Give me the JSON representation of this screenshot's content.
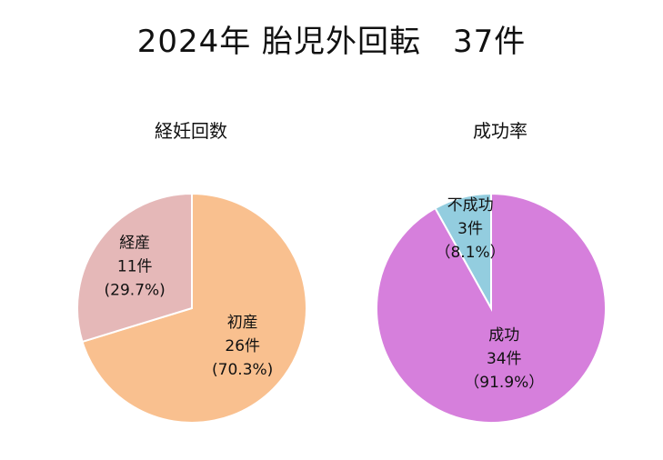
{
  "title": "2024年 胎児外回転　37件",
  "chart_data": [
    {
      "type": "pie",
      "title": "経妊回数",
      "slices": [
        {
          "label": "初産",
          "count": "26件",
          "percent": "(70.3%)",
          "value": 26,
          "color": "#f9c08f"
        },
        {
          "label": "経産",
          "count": "11件",
          "percent": "(29.7%)",
          "value": 11,
          "color": "#e5b8b8"
        }
      ]
    },
    {
      "type": "pie",
      "title": "成功率",
      "slices": [
        {
          "label": "成功",
          "count": "34件",
          "percent": "（91.9%）",
          "value": 34,
          "color": "#d67fdc"
        },
        {
          "label": "不成功",
          "count": "3件",
          "percent": "（8.1%）",
          "value": 3,
          "color": "#93cddf"
        }
      ]
    }
  ]
}
